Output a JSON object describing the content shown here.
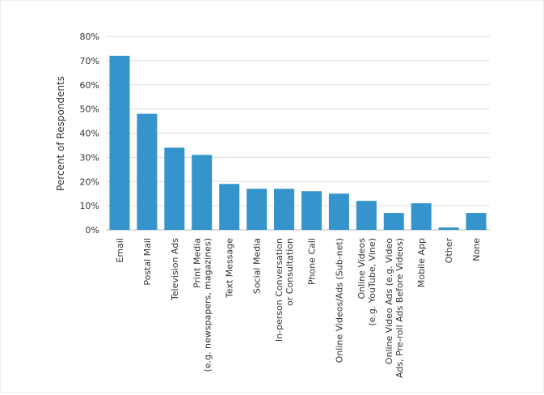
{
  "chart_data": {
    "type": "bar",
    "ylabel": "Percent of Respondents",
    "xlabel": "",
    "ylim": [
      0,
      80
    ],
    "yticks": [
      0,
      10,
      20,
      30,
      40,
      50,
      60,
      70,
      80
    ],
    "ytick_labels": [
      "0%",
      "10%",
      "20%",
      "30%",
      "40%",
      "50%",
      "60%",
      "70%",
      "80%"
    ],
    "grid": true,
    "bar_color": "#3594cc",
    "categories": [
      [
        "Email"
      ],
      [
        "Postal Mail"
      ],
      [
        "Television Ads"
      ],
      [
        "Print Media",
        "(e.g. newspapers, magazines)"
      ],
      [
        "Text Message"
      ],
      [
        "Social Media"
      ],
      [
        "In-person Conversation",
        "or Consultation"
      ],
      [
        "Phone Call"
      ],
      [
        "Online Videos/Ads (Sub-net)"
      ],
      [
        "Online Videos",
        "(e.g. YouTube, Vine)"
      ],
      [
        "Online Video Ads (e.g. Video",
        "Ads, Pre-roll Ads Before Videos)"
      ],
      [
        "Mobile App"
      ],
      [
        "Other"
      ],
      [
        "None"
      ]
    ],
    "values": [
      72,
      48,
      34,
      31,
      19,
      17,
      17,
      16,
      15,
      12,
      7,
      11,
      1,
      7
    ]
  }
}
